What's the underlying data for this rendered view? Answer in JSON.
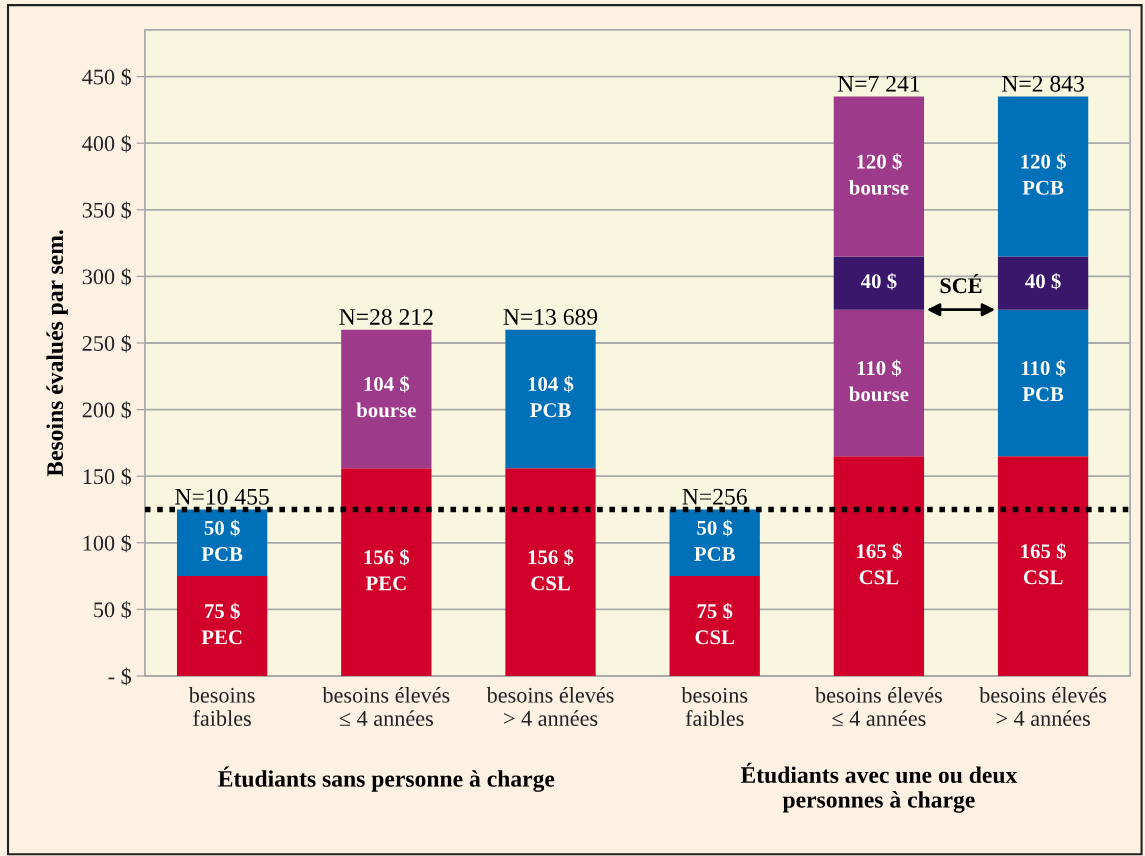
{
  "chart_data": {
    "type": "bar",
    "stacked": true,
    "ylabel": "Besoins évalués par sem.",
    "categories": [
      "besoins\nfaibles",
      "besoins élevés\n≤ 4 années",
      "besoins élevés\n> 4 années",
      "besoins\nfaibles",
      "besoins élevés\n≤ 4 années",
      "besoins élevés\n> 4 années"
    ],
    "series": [
      {
        "colors": [
          "#d0002a",
          "#d0002a",
          "#d0002a",
          "#d0002a",
          "#d0002a",
          "#d0002a"
        ],
        "values": [
          75,
          156,
          156,
          75,
          165,
          165
        ],
        "value_labels": [
          "75 $\nPEC",
          "156 $\nPEC",
          "156 $\nCSL",
          "75 $\nCSL",
          "165 $\nCSL",
          "165 $\nCSL"
        ]
      },
      {
        "colors": [
          "#0070b8",
          "#9e3a8a",
          "#0070b8",
          "#0070b8",
          "#9e3a8a",
          "#0070b8"
        ],
        "values": [
          50,
          104,
          104,
          50,
          110,
          110
        ],
        "value_labels": [
          "50 $\nPCB",
          "104 $\nbourse",
          "104 $\nPCB",
          "50 $\nPCB",
          "110 $\nbourse",
          "110 $\nPCB"
        ]
      },
      {
        "colors": [
          "#3a176a",
          "#3a176a",
          "#3a176a",
          "#3a176a",
          "#3a176a",
          "#3a176a"
        ],
        "values": [
          null,
          null,
          null,
          null,
          40,
          40
        ],
        "value_labels": [
          null,
          null,
          null,
          null,
          "40 $",
          "40 $"
        ]
      },
      {
        "colors": [
          "#9e3a8a",
          "#9e3a8a",
          "#9e3a8a",
          "#9e3a8a",
          "#9e3a8a",
          "#0070b8"
        ],
        "values": [
          null,
          null,
          null,
          null,
          120,
          120
        ],
        "value_labels": [
          null,
          null,
          null,
          null,
          "120 $\nbourse",
          "120 $\nPCB"
        ]
      }
    ],
    "ylim": [
      0,
      485
    ],
    "yticks": [
      {
        "value": 0,
        "label": "- $"
      },
      {
        "value": 50,
        "label": "50 $"
      },
      {
        "value": 100,
        "label": "100 $"
      },
      {
        "value": 150,
        "label": "150 $"
      },
      {
        "value": 200,
        "label": "200 $"
      },
      {
        "value": 250,
        "label": "250 $"
      },
      {
        "value": 300,
        "label": "300 $"
      },
      {
        "value": 350,
        "label": "350 $"
      },
      {
        "value": 400,
        "label": "400 $"
      },
      {
        "value": 450,
        "label": "450 $"
      }
    ],
    "grid": "y",
    "ref_lines": [
      {
        "axis": "y",
        "value": 125,
        "color": "#000000",
        "line_style": "dotted"
      }
    ],
    "annotations": [
      "N=10 455",
      "N=28 212",
      "N=13 689",
      "N=256",
      "N=7 241",
      "N=2 843",
      "SCÉ",
      "Étudiants sans personne à charge",
      "Étudiants avec une ou deux\npersonnes à charge"
    ]
  }
}
